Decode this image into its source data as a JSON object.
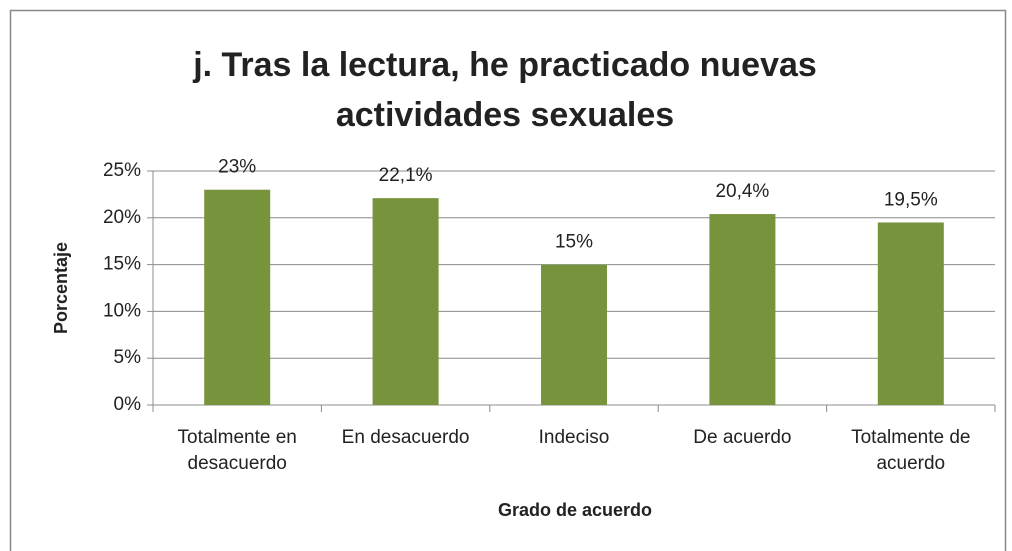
{
  "chart_data": {
    "type": "bar",
    "title": "j. Tras la lectura, he practicado nuevas actividades sexuales",
    "xlabel": "Grado de acuerdo",
    "ylabel": "Porcentaje",
    "categories": [
      "Totalmente en desacuerdo",
      "En desacuerdo",
      "Indeciso",
      "De acuerdo",
      "Totalmente de acuerdo"
    ],
    "values": [
      23,
      22.1,
      15,
      20.4,
      19.5
    ],
    "value_labels": [
      "23%",
      "22,1%",
      "15%",
      "20,4%",
      "19,5%"
    ],
    "color": "#77933c",
    "ylim": [
      0,
      25
    ],
    "yticks": [
      {
        "value": 0,
        "label": "0%"
      },
      {
        "value": 5,
        "label": "5%"
      },
      {
        "value": 10,
        "label": "10%"
      },
      {
        "value": 15,
        "label": "15%"
      },
      {
        "value": 20,
        "label": "20%"
      },
      {
        "value": 25,
        "label": "25%"
      }
    ],
    "grid": true
  }
}
